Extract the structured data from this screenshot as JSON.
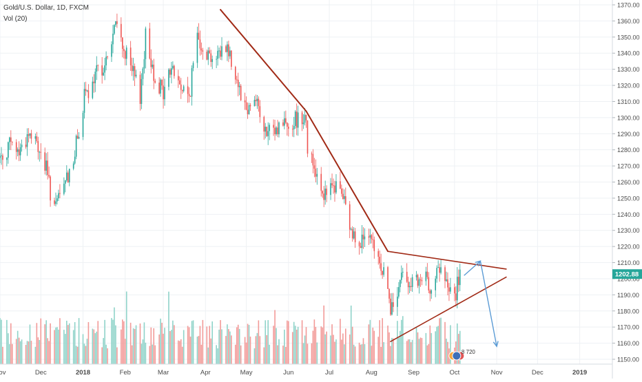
{
  "header": {
    "symbol_line": "Gold/U.S. Dollar, 1D, FXCM",
    "volume_line": "Vol (20)"
  },
  "price_tag": {
    "value": "1202.88",
    "color": "#26a69a"
  },
  "badge": {
    "text": "8 720"
  },
  "colors": {
    "up": "#26a69a",
    "down": "#ef5350",
    "vol_up": "#8fd3c9",
    "vol_down": "#f29a98",
    "trendline": "#a12a16",
    "projection": "#5b9bd5",
    "grid": "#eef1f4",
    "axis_text": "#4a4a4a"
  },
  "chart_data": {
    "type": "candlestick",
    "title": "Gold/U.S. Dollar, 1D, FXCM",
    "y_axis": {
      "side": "right",
      "ylim": [
        1147,
        1373
      ],
      "ticks": [
        1150,
        1160,
        1170,
        1180,
        1190,
        1200,
        1210,
        1220,
        1230,
        1240,
        1250,
        1260,
        1270,
        1280,
        1290,
        1300,
        1310,
        1320,
        1330,
        1340,
        1350,
        1360,
        1370
      ],
      "tick_labels": [
        "1150.00",
        "1160.00",
        "1170.00",
        "1180.00",
        "1190.00",
        "1200.00",
        "1210.00",
        "1220.00",
        "1230.00",
        "1240.00",
        "1250.00",
        "1260.00",
        "1270.00",
        "1280.00",
        "1290.00",
        "1300.00",
        "1310.00",
        "1320.00",
        "1330.00",
        "1340.00",
        "1350.00",
        "1360.00",
        "1370.00"
      ]
    },
    "x_axis": {
      "date_range": [
        "2017-11-01",
        "2019-01-25"
      ],
      "ticks": [
        {
          "date": "2017-11-01",
          "label": "Nov"
        },
        {
          "date": "2017-12-01",
          "label": "Dec"
        },
        {
          "date": "2018-01-01",
          "label": "2018"
        },
        {
          "date": "2018-02-01",
          "label": "Feb"
        },
        {
          "date": "2018-03-01",
          "label": "Mar"
        },
        {
          "date": "2018-04-01",
          "label": "Apr"
        },
        {
          "date": "2018-05-01",
          "label": "May"
        },
        {
          "date": "2018-06-01",
          "label": "Jun"
        },
        {
          "date": "2018-07-01",
          "label": "Jul"
        },
        {
          "date": "2018-08-01",
          "label": "Aug"
        },
        {
          "date": "2018-09-01",
          "label": "Sep"
        },
        {
          "date": "2018-10-01",
          "label": "Oct"
        },
        {
          "date": "2018-11-01",
          "label": "Nov"
        },
        {
          "date": "2018-12-01",
          "label": "Dec"
        },
        {
          "date": "2019-01-01",
          "label": "2019"
        }
      ]
    },
    "price_path": [
      [
        "2017-11-01",
        1275
      ],
      [
        "2017-11-08",
        1283
      ],
      [
        "2017-11-15",
        1279
      ],
      [
        "2017-11-22",
        1290
      ],
      [
        "2017-11-29",
        1282
      ],
      [
        "2017-12-05",
        1268
      ],
      [
        "2017-12-08",
        1254
      ],
      [
        "2017-12-12",
        1243
      ],
      [
        "2017-12-15",
        1252
      ],
      [
        "2017-12-20",
        1262
      ],
      [
        "2017-12-26",
        1278
      ],
      [
        "2018-01-02",
        1312
      ],
      [
        "2018-01-08",
        1318
      ],
      [
        "2018-01-12",
        1330
      ],
      [
        "2018-01-18",
        1334
      ],
      [
        "2018-01-25",
        1358
      ],
      [
        "2018-02-01",
        1340
      ],
      [
        "2018-02-07",
        1326
      ],
      [
        "2018-02-12",
        1314
      ],
      [
        "2018-02-16",
        1350
      ],
      [
        "2018-02-22",
        1328
      ],
      [
        "2018-03-01",
        1315
      ],
      [
        "2018-03-07",
        1332
      ],
      [
        "2018-03-13",
        1320
      ],
      [
        "2018-03-20",
        1312
      ],
      [
        "2018-03-26",
        1352
      ],
      [
        "2018-04-02",
        1340
      ],
      [
        "2018-04-09",
        1337
      ],
      [
        "2018-04-16",
        1346
      ],
      [
        "2018-04-20",
        1336
      ],
      [
        "2018-04-25",
        1322
      ],
      [
        "2018-05-01",
        1305
      ],
      [
        "2018-05-08",
        1314
      ],
      [
        "2018-05-14",
        1290
      ],
      [
        "2018-05-21",
        1290
      ],
      [
        "2018-05-28",
        1298
      ],
      [
        "2018-06-01",
        1296
      ],
      [
        "2018-06-08",
        1300
      ],
      [
        "2018-06-14",
        1302
      ],
      [
        "2018-06-15",
        1280
      ],
      [
        "2018-06-21",
        1268
      ],
      [
        "2018-06-28",
        1251
      ],
      [
        "2018-07-05",
        1257
      ],
      [
        "2018-07-10",
        1254
      ],
      [
        "2018-07-17",
        1228
      ],
      [
        "2018-07-24",
        1225
      ],
      [
        "2018-07-31",
        1222
      ],
      [
        "2018-08-07",
        1210
      ],
      [
        "2018-08-13",
        1197
      ],
      [
        "2018-08-15",
        1178
      ],
      [
        "2018-08-20",
        1190
      ],
      [
        "2018-08-24",
        1204
      ],
      [
        "2018-08-30",
        1198
      ],
      [
        "2018-09-04",
        1196
      ],
      [
        "2018-09-10",
        1199
      ],
      [
        "2018-09-14",
        1196
      ],
      [
        "2018-09-20",
        1206
      ],
      [
        "2018-09-26",
        1194
      ],
      [
        "2018-10-01",
        1188
      ],
      [
        "2018-10-05",
        1203
      ]
    ],
    "volume_range": [
      0,
      185
    ],
    "annotations": {
      "resistance_line_1": [
        [
          "2018-04-12",
          1367
        ],
        [
          "2018-06-14",
          1304
        ]
      ],
      "resistance_line_2": [
        [
          "2018-06-14",
          1304
        ],
        [
          "2018-08-13",
          1217
        ]
      ],
      "triangle_upper": [
        [
          "2018-08-13",
          1217
        ],
        [
          "2018-11-08",
          1206
        ]
      ],
      "triangle_lower": [
        [
          "2018-08-15",
          1161
        ],
        [
          "2018-11-08",
          1201
        ]
      ],
      "projection_up": [
        [
          "2018-10-08",
          1202
        ],
        [
          "2018-10-20",
          1211
        ]
      ],
      "projection_down": [
        [
          "2018-10-20",
          1211
        ],
        [
          "2018-11-01",
          1158
        ]
      ]
    }
  }
}
